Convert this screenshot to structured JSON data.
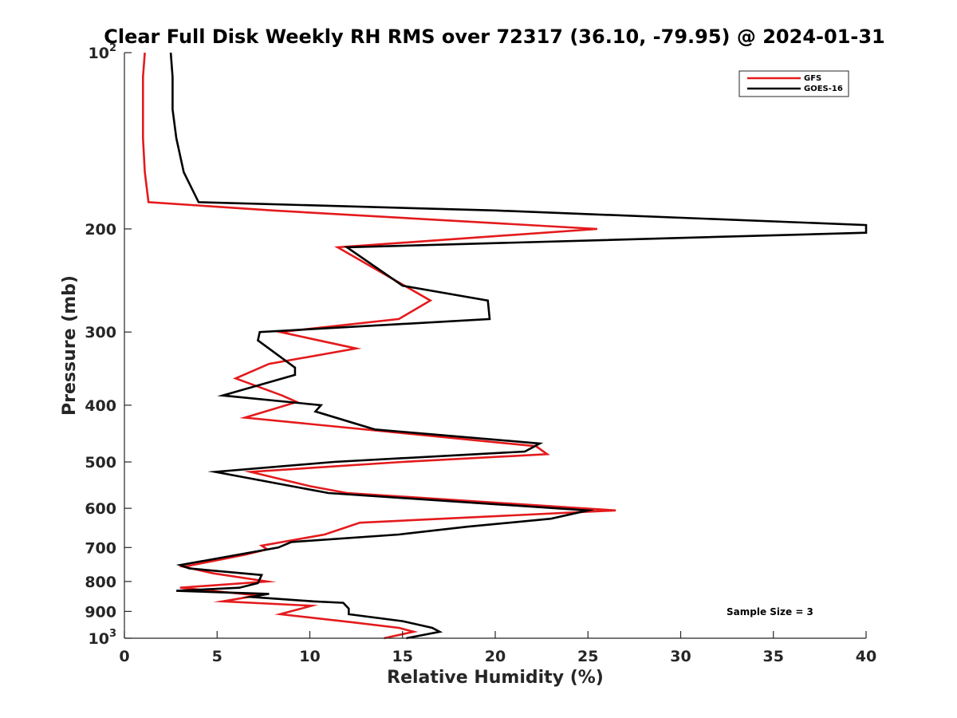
{
  "chart_data": {
    "type": "line",
    "title": "Clear Full Disk Weekly RH RMS over 72317 (36.10, -79.95) @ 2024-01-31",
    "xlabel": "Relative Humidity (%)",
    "ylabel": "Pressure (mb)",
    "xlim": [
      0,
      40
    ],
    "ylim": [
      100,
      1000
    ],
    "y_scale": "log",
    "y_reversed": true,
    "grid": false,
    "legend_position": "top-right",
    "x_ticks": [
      "0",
      "5",
      "10",
      "15",
      "20",
      "25",
      "30",
      "35",
      "40"
    ],
    "y_ticks": [
      {
        "value": 100,
        "base": "10",
        "exp": "2"
      },
      {
        "value": 200,
        "base": "200",
        "exp": ""
      },
      {
        "value": 300,
        "base": "300",
        "exp": ""
      },
      {
        "value": 400,
        "base": "400",
        "exp": ""
      },
      {
        "value": 500,
        "base": "500",
        "exp": ""
      },
      {
        "value": 600,
        "base": "600",
        "exp": ""
      },
      {
        "value": 700,
        "base": "700",
        "exp": ""
      },
      {
        "value": 800,
        "base": "800",
        "exp": ""
      },
      {
        "value": 900,
        "base": "900",
        "exp": ""
      },
      {
        "value": 1000,
        "base": "10",
        "exp": "3"
      }
    ],
    "annotation": "Sample Size = 3",
    "series": [
      {
        "name": "GFS",
        "color": "#e41a1c",
        "points": [
          [
            1.1,
            100
          ],
          [
            1.0,
            110
          ],
          [
            1.0,
            125
          ],
          [
            1.0,
            140
          ],
          [
            1.1,
            160
          ],
          [
            1.3,
            180
          ],
          [
            8,
            186
          ],
          [
            25.5,
            200
          ],
          [
            11.5,
            215
          ],
          [
            16.5,
            265
          ],
          [
            14.8,
            285
          ],
          [
            8.4,
            300
          ],
          [
            12.5,
            320
          ],
          [
            7.8,
            340
          ],
          [
            6.0,
            360
          ],
          [
            8.5,
            385
          ],
          [
            9.3,
            395
          ],
          [
            6.5,
            420
          ],
          [
            22.2,
            470
          ],
          [
            22.8,
            485
          ],
          [
            15,
            500
          ],
          [
            6.8,
            520
          ],
          [
            10,
            550
          ],
          [
            12,
            565
          ],
          [
            26.5,
            605
          ],
          [
            12.7,
            635
          ],
          [
            10.8,
            665
          ],
          [
            7.4,
            695
          ],
          [
            7.7,
            705
          ],
          [
            6.5,
            720
          ],
          [
            3.2,
            755
          ],
          [
            4.8,
            775
          ],
          [
            7.7,
            800
          ],
          [
            3,
            820
          ],
          [
            7.2,
            845
          ],
          [
            5.3,
            865
          ],
          [
            10.1,
            880
          ],
          [
            8.4,
            910
          ],
          [
            12.4,
            940
          ],
          [
            14.8,
            960
          ],
          [
            15.6,
            975
          ],
          [
            14,
            1000
          ]
        ]
      },
      {
        "name": "GOES-16",
        "color": "#000000",
        "points": [
          [
            2.5,
            100
          ],
          [
            2.6,
            110
          ],
          [
            2.6,
            125
          ],
          [
            2.8,
            140
          ],
          [
            3.2,
            160
          ],
          [
            4,
            180
          ],
          [
            20,
            186
          ],
          [
            40,
            197
          ],
          [
            40,
            203
          ],
          [
            12,
            215
          ],
          [
            15,
            250
          ],
          [
            19.6,
            265
          ],
          [
            19.7,
            285
          ],
          [
            7.3,
            300
          ],
          [
            7.2,
            310
          ],
          [
            9.2,
            345
          ],
          [
            9.2,
            355
          ],
          [
            5.3,
            385
          ],
          [
            10.6,
            400
          ],
          [
            10.3,
            410
          ],
          [
            13.5,
            440
          ],
          [
            22.4,
            465
          ],
          [
            21.6,
            480
          ],
          [
            11.3,
            500
          ],
          [
            4.9,
            520
          ],
          [
            11,
            565
          ],
          [
            25,
            605
          ],
          [
            23,
            625
          ],
          [
            18.5,
            645
          ],
          [
            14.8,
            665
          ],
          [
            9.0,
            685
          ],
          [
            8.3,
            700
          ],
          [
            3,
            750
          ],
          [
            3.5,
            760
          ],
          [
            7.4,
            780
          ],
          [
            7.2,
            805
          ],
          [
            6.2,
            820
          ],
          [
            2.8,
            830
          ],
          [
            7.8,
            840
          ],
          [
            6.8,
            850
          ],
          [
            10.2,
            865
          ],
          [
            11.8,
            870
          ],
          [
            12.1,
            890
          ],
          [
            12.1,
            910
          ],
          [
            15,
            935
          ],
          [
            16.6,
            960
          ],
          [
            17.0,
            975
          ],
          [
            15.2,
            1000
          ]
        ]
      }
    ]
  }
}
